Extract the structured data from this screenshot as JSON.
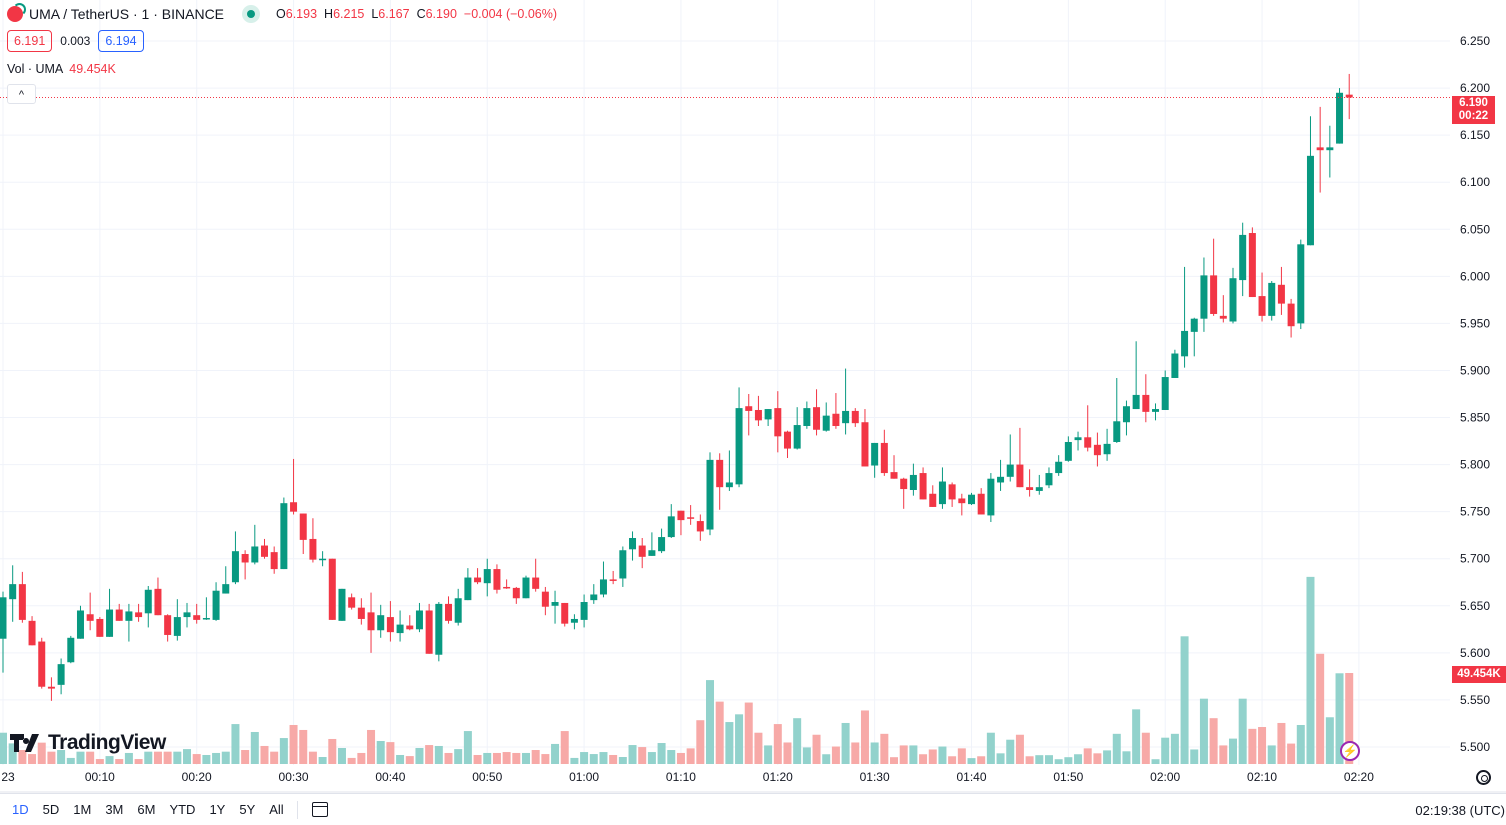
{
  "header": {
    "symbol": "UMA / TetherUS · 1 · BINANCE",
    "market_status": "open",
    "open_label": "O",
    "open": "6.193",
    "high_label": "H",
    "high": "6.215",
    "low_label": "L",
    "low": "6.167",
    "close_label": "C",
    "close": "6.190",
    "change": "−0.004 (−0.06%)",
    "sell_price": "6.191",
    "spread": "0.003",
    "buy_price": "6.194",
    "volume_label": "Vol · UMA",
    "volume_value": "49.454K",
    "collapse_label": "^"
  },
  "watermark": "TradingView",
  "price_label": {
    "price": "6.190",
    "countdown": "00:22"
  },
  "volume_axis_label": "49.454K",
  "bottom_bar": {
    "ranges": [
      "1D",
      "5D",
      "1M",
      "3M",
      "6M",
      "YTD",
      "1Y",
      "5Y",
      "All"
    ],
    "active_range": "1D",
    "clock": "02:19:38 (UTC)"
  },
  "colors": {
    "up": "#089981",
    "down": "#f23645",
    "up_volume": "#92d2cc",
    "down_volume": "#f7a9a7",
    "grid": "#f0f3fa"
  },
  "chart_data": {
    "type": "candlestick",
    "interval": "1",
    "columns": [
      "time",
      "open",
      "high",
      "low",
      "close",
      "volume_k"
    ],
    "ylim": [
      5.48,
      6.26
    ],
    "price_ticks": [
      "6.250",
      "6.200",
      "6.150",
      "6.100",
      "6.050",
      "6.000",
      "5.950",
      "5.900",
      "5.850",
      "5.800",
      "5.750",
      "5.700",
      "5.650",
      "5.600",
      "5.550",
      "5.500"
    ],
    "time_ticks": [
      "23",
      "00:10",
      "00:20",
      "00:30",
      "00:40",
      "00:50",
      "01:00",
      "01:10",
      "01:20",
      "01:30",
      "01:40",
      "01:50",
      "02:00",
      "02:10",
      "02:20"
    ],
    "grid": true,
    "last_price_line": 6.19,
    "candles": [
      [
        "00:00",
        5.615,
        5.665,
        5.579,
        5.659,
        17.0
      ],
      [
        "00:01",
        5.657,
        5.693,
        5.633,
        5.673,
        11.2
      ],
      [
        "00:02",
        5.673,
        5.686,
        5.632,
        5.635,
        7.6
      ],
      [
        "00:03",
        5.634,
        5.639,
        5.608,
        5.608,
        5.4
      ],
      [
        "00:04",
        5.612,
        5.616,
        5.562,
        5.564,
        11.6
      ],
      [
        "00:05",
        5.564,
        5.574,
        5.549,
        5.562,
        6.7
      ],
      [
        "00:06",
        5.566,
        5.594,
        5.556,
        5.588,
        7.6
      ],
      [
        "00:07",
        5.59,
        5.618,
        5.589,
        5.616,
        3.3
      ],
      [
        "00:08",
        5.615,
        5.65,
        5.615,
        5.645,
        6.7
      ],
      [
        "00:09",
        5.641,
        5.664,
        5.624,
        5.634,
        6.7
      ],
      [
        "00:10",
        5.636,
        5.638,
        5.617,
        5.617,
        2.7
      ],
      [
        "00:11",
        5.617,
        5.668,
        5.617,
        5.646,
        4.3
      ],
      [
        "00:12",
        5.646,
        5.652,
        5.634,
        5.634,
        2.7
      ],
      [
        "00:13",
        5.634,
        5.652,
        5.612,
        5.644,
        6.0
      ],
      [
        "00:14",
        5.643,
        5.652,
        5.633,
        5.638,
        2.7
      ],
      [
        "00:15",
        5.642,
        5.671,
        5.627,
        5.667,
        6.7
      ],
      [
        "00:16",
        5.668,
        5.68,
        5.64,
        5.64,
        6.7
      ],
      [
        "00:17",
        5.64,
        5.641,
        5.612,
        5.619,
        6.7
      ],
      [
        "00:18",
        5.618,
        5.657,
        5.613,
        5.638,
        6.7
      ],
      [
        "00:19",
        5.638,
        5.653,
        5.627,
        5.643,
        8.1
      ],
      [
        "00:20",
        5.64,
        5.652,
        5.631,
        5.635,
        5.4
      ],
      [
        "00:21",
        5.636,
        5.659,
        5.635,
        5.637,
        4.9
      ],
      [
        "00:22",
        5.635,
        5.675,
        5.634,
        5.666,
        6.0
      ],
      [
        "00:23",
        5.663,
        5.692,
        5.663,
        5.673,
        6.7
      ],
      [
        "00:24",
        5.675,
        5.729,
        5.673,
        5.708,
        21.7
      ],
      [
        "00:25",
        5.705,
        5.709,
        5.678,
        5.696,
        7.6
      ],
      [
        "00:26",
        5.696,
        5.736,
        5.694,
        5.713,
        17.4
      ],
      [
        "00:27",
        5.714,
        5.721,
        5.7,
        5.702,
        9.8
      ],
      [
        "00:28",
        5.707,
        5.713,
        5.684,
        5.689,
        6.7
      ],
      [
        "00:29",
        5.689,
        5.765,
        5.689,
        5.759,
        14.1
      ],
      [
        "00:30",
        5.76,
        5.806,
        5.747,
        5.75,
        21.2
      ],
      [
        "00:31",
        5.748,
        5.748,
        5.705,
        5.72,
        18.5
      ],
      [
        "00:32",
        5.721,
        5.743,
        5.696,
        5.699,
        6.7
      ],
      [
        "00:33",
        5.699,
        5.708,
        5.692,
        5.7,
        3.8
      ],
      [
        "00:34",
        5.7,
        5.7,
        5.635,
        5.635,
        13.6
      ],
      [
        "00:35",
        5.634,
        5.668,
        5.634,
        5.668,
        8.7
      ],
      [
        "00:36",
        5.659,
        5.663,
        5.646,
        5.648,
        3.3
      ],
      [
        "00:37",
        5.648,
        5.658,
        5.63,
        5.636,
        6.0
      ],
      [
        "00:38",
        5.643,
        5.664,
        5.6,
        5.624,
        18.5
      ],
      [
        "00:39",
        5.624,
        5.651,
        5.616,
        5.64,
        12.5
      ],
      [
        "00:40",
        5.638,
        5.655,
        5.612,
        5.622,
        11.9
      ],
      [
        "00:41",
        5.621,
        5.645,
        5.612,
        5.63,
        4.9
      ],
      [
        "00:42",
        5.629,
        5.64,
        5.624,
        5.625,
        4.3
      ],
      [
        "00:43",
        5.625,
        5.653,
        5.622,
        5.645,
        8.7
      ],
      [
        "00:44",
        5.645,
        5.652,
        5.599,
        5.599,
        10.3
      ],
      [
        "00:45",
        5.598,
        5.654,
        5.591,
        5.652,
        9.8
      ],
      [
        "00:46",
        5.652,
        5.66,
        5.631,
        5.634,
        6.0
      ],
      [
        "00:47",
        5.632,
        5.668,
        5.629,
        5.658,
        8.1
      ],
      [
        "00:48",
        5.656,
        5.69,
        5.656,
        5.68,
        17.9
      ],
      [
        "00:49",
        5.68,
        5.69,
        5.673,
        5.675,
        4.9
      ],
      [
        "00:50",
        5.674,
        5.7,
        5.66,
        5.689,
        6.0
      ],
      [
        "00:51",
        5.689,
        5.694,
        5.663,
        5.667,
        6.0
      ],
      [
        "00:52",
        5.67,
        5.678,
        5.668,
        5.669,
        6.5
      ],
      [
        "00:53",
        5.669,
        5.67,
        5.652,
        5.658,
        6.0
      ],
      [
        "00:54",
        5.658,
        5.682,
        5.658,
        5.68,
        6.0
      ],
      [
        "00:55",
        5.68,
        5.7,
        5.665,
        5.668,
        7.6
      ],
      [
        "00:56",
        5.665,
        5.67,
        5.64,
        5.649,
        5.4
      ],
      [
        "00:57",
        5.65,
        5.666,
        5.631,
        5.654,
        10.9
      ],
      [
        "00:58",
        5.653,
        5.653,
        5.628,
        5.631,
        17.9
      ],
      [
        "00:59",
        5.632,
        5.641,
        5.625,
        5.636,
        3.3
      ],
      [
        "01:00",
        5.635,
        5.662,
        5.627,
        5.654,
        6.5
      ],
      [
        "01:01",
        5.656,
        5.673,
        5.652,
        5.662,
        5.4
      ],
      [
        "01:02",
        5.662,
        5.697,
        5.659,
        5.678,
        6.5
      ],
      [
        "01:03",
        5.678,
        5.687,
        5.673,
        5.677,
        4.9
      ],
      [
        "01:04",
        5.679,
        5.713,
        5.67,
        5.709,
        3.8
      ],
      [
        "01:05",
        5.71,
        5.729,
        5.698,
        5.722,
        10.3
      ],
      [
        "01:06",
        5.714,
        5.722,
        5.69,
        5.702,
        9.2
      ],
      [
        "01:07",
        5.703,
        5.728,
        5.703,
        5.709,
        6.5
      ],
      [
        "01:08",
        5.708,
        5.732,
        5.706,
        5.723,
        11.4
      ],
      [
        "01:09",
        5.723,
        5.758,
        5.722,
        5.745,
        7.6
      ],
      [
        "01:10",
        5.751,
        5.751,
        5.725,
        5.741,
        6.0
      ],
      [
        "01:11",
        5.744,
        5.757,
        5.736,
        5.743,
        8.5
      ],
      [
        "01:12",
        5.74,
        5.747,
        5.719,
        5.729,
        23.8
      ],
      [
        "01:13",
        5.731,
        5.813,
        5.725,
        5.805,
        45.6
      ],
      [
        "01:14",
        5.805,
        5.812,
        5.752,
        5.776,
        33.9
      ],
      [
        "01:15",
        5.776,
        5.815,
        5.772,
        5.781,
        22.8
      ],
      [
        "01:16",
        5.779,
        5.882,
        5.776,
        5.86,
        27.0
      ],
      [
        "01:17",
        5.862,
        5.875,
        5.831,
        5.857,
        33.4
      ],
      [
        "01:18",
        5.858,
        5.873,
        5.841,
        5.847,
        17.0
      ],
      [
        "01:19",
        5.848,
        5.859,
        5.841,
        5.859,
        10.1
      ],
      [
        "01:20",
        5.86,
        5.878,
        5.813,
        5.83,
        21.7
      ],
      [
        "01:21",
        5.835,
        5.836,
        5.807,
        5.817,
        11.7
      ],
      [
        "01:22",
        5.817,
        5.861,
        5.816,
        5.842,
        24.9
      ],
      [
        "01:23",
        5.841,
        5.867,
        5.838,
        5.86,
        9.0
      ],
      [
        "01:24",
        5.861,
        5.88,
        5.831,
        5.837,
        15.9
      ],
      [
        "01:25",
        5.836,
        5.866,
        5.835,
        5.852,
        5.3
      ],
      [
        "01:26",
        5.854,
        5.876,
        5.838,
        5.841,
        9.5
      ],
      [
        "01:27",
        5.844,
        5.902,
        5.832,
        5.857,
        22.3
      ],
      [
        "01:28",
        5.857,
        5.86,
        5.84,
        5.844,
        11.7
      ],
      [
        "01:29",
        5.845,
        5.859,
        5.798,
        5.798,
        29.1
      ],
      [
        "01:30",
        5.799,
        5.823,
        5.786,
        5.823,
        11.7
      ],
      [
        "01:31",
        5.823,
        5.837,
        5.788,
        5.791,
        16.4
      ],
      [
        "01:32",
        5.792,
        5.81,
        5.785,
        5.785,
        3.7
      ],
      [
        "01:33",
        5.785,
        5.786,
        5.753,
        5.774,
        10.1
      ],
      [
        "01:34",
        5.773,
        5.801,
        5.767,
        5.789,
        10.1
      ],
      [
        "01:35",
        5.791,
        5.797,
        5.763,
        5.763,
        5.3
      ],
      [
        "01:36",
        5.769,
        5.778,
        5.755,
        5.755,
        7.9
      ],
      [
        "01:37",
        5.758,
        5.797,
        5.753,
        5.782,
        9.5
      ],
      [
        "01:38",
        5.779,
        5.781,
        5.755,
        5.763,
        4.2
      ],
      [
        "01:39",
        5.764,
        5.769,
        5.746,
        5.759,
        8.5
      ],
      [
        "01:40",
        5.758,
        5.77,
        5.757,
        5.768,
        3.2
      ],
      [
        "01:41",
        5.769,
        5.775,
        5.747,
        5.747,
        4.2
      ],
      [
        "01:42",
        5.746,
        5.791,
        5.739,
        5.785,
        17.0
      ],
      [
        "01:43",
        5.781,
        5.805,
        5.772,
        5.787,
        5.8
      ],
      [
        "01:44",
        5.787,
        5.832,
        5.782,
        5.8,
        13.2
      ],
      [
        "01:45",
        5.8,
        5.839,
        5.776,
        5.776,
        15.9
      ],
      [
        "01:46",
        5.776,
        5.795,
        5.766,
        5.773,
        4.2
      ],
      [
        "01:47",
        5.772,
        5.789,
        5.768,
        5.776,
        4.8
      ],
      [
        "01:48",
        5.778,
        5.797,
        5.775,
        5.791,
        4.8
      ],
      [
        "01:49",
        5.791,
        5.81,
        5.788,
        5.803,
        2.6
      ],
      [
        "01:50",
        5.804,
        5.83,
        5.803,
        5.824,
        3.7
      ],
      [
        "01:51",
        5.826,
        5.835,
        5.815,
        5.829,
        5.3
      ],
      [
        "01:52",
        5.829,
        5.863,
        5.814,
        5.818,
        8.5
      ],
      [
        "01:53",
        5.821,
        5.834,
        5.798,
        5.81,
        5.8
      ],
      [
        "01:54",
        5.811,
        5.838,
        5.804,
        5.822,
        7.4
      ],
      [
        "01:55",
        5.824,
        5.892,
        5.823,
        5.846,
        16.4
      ],
      [
        "01:56",
        5.845,
        5.868,
        5.831,
        5.862,
        6.9
      ],
      [
        "01:57",
        5.859,
        5.931,
        5.859,
        5.874,
        29.7
      ],
      [
        "01:58",
        5.874,
        5.896,
        5.845,
        5.856,
        17.0
      ],
      [
        "01:59",
        5.856,
        5.865,
        5.847,
        5.859,
        2.6
      ],
      [
        "02:00",
        5.858,
        5.9,
        5.858,
        5.893,
        14.3
      ],
      [
        "02:01",
        5.892,
        5.922,
        5.892,
        5.918,
        16.4
      ],
      [
        "02:02",
        5.915,
        6.01,
        5.903,
        5.942,
        69.4
      ],
      [
        "02:03",
        5.941,
        5.956,
        5.915,
        5.955,
        7.9
      ],
      [
        "02:04",
        5.955,
        6.02,
        5.941,
        6.001,
        35.5
      ],
      [
        "02:05",
        6.001,
        6.04,
        5.958,
        5.96,
        24.9
      ],
      [
        "02:06",
        5.958,
        5.98,
        5.951,
        5.955,
        10.1
      ],
      [
        "02:07",
        5.952,
        6.009,
        5.95,
        5.998,
        13.8
      ],
      [
        "02:08",
        5.996,
        6.057,
        5.979,
        6.044,
        35.5
      ],
      [
        "02:09",
        6.046,
        6.052,
        5.978,
        5.978,
        19.1
      ],
      [
        "02:10",
        5.979,
        6.004,
        5.952,
        5.958,
        20.1
      ],
      [
        "02:11",
        5.958,
        5.995,
        5.953,
        5.993,
        10.1
      ],
      [
        "02:12",
        5.991,
        6.01,
        5.959,
        5.971,
        22.3
      ],
      [
        "02:13",
        5.971,
        5.976,
        5.935,
        5.947,
        11.1
      ],
      [
        "02:14",
        5.95,
        6.039,
        5.944,
        6.034,
        21.2
      ],
      [
        "02:15",
        6.033,
        6.17,
        6.033,
        6.128,
        101.7
      ],
      [
        "02:16",
        6.137,
        6.18,
        6.089,
        6.134,
        59.9
      ],
      [
        "02:17",
        6.134,
        6.16,
        6.105,
        6.137,
        25.4
      ],
      [
        "02:18",
        6.141,
        6.2,
        6.141,
        6.195,
        49.3
      ],
      [
        "02:19",
        6.193,
        6.215,
        6.167,
        6.19,
        49.454
      ]
    ]
  }
}
